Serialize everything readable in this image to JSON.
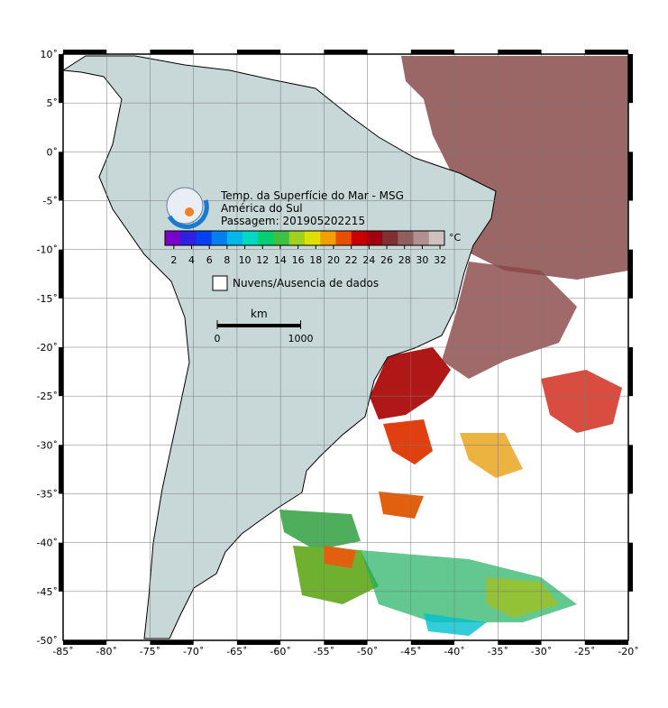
{
  "header": {
    "title": "Temp. da Superfície do Mar - MSG",
    "region": "América do Sul",
    "pass": "Passagem: 201905202215"
  },
  "colorbar": {
    "lim": [
      1,
      32.5
    ],
    "ticks": [
      2,
      4,
      6,
      8,
      10,
      12,
      14,
      16,
      18,
      20,
      22,
      24,
      26,
      28,
      30,
      32
    ],
    "unit": "°C",
    "colors": [
      "#7a00c8",
      "#3020e0",
      "#0040f0",
      "#0080f0",
      "#00b8e8",
      "#00d8c0",
      "#00d070",
      "#40c040",
      "#a0d020",
      "#e0e000",
      "#f0a000",
      "#e85000",
      "#c80000",
      "#a00010",
      "#803030",
      "#906060",
      "#b09090",
      "#d0c0c0"
    ]
  },
  "legend": {
    "label": "Nuvens/Ausencia de dados"
  },
  "scale": {
    "unit": "km",
    "ticks": [
      0,
      1000
    ]
  },
  "map": {
    "lonlim": [
      -85,
      -20
    ],
    "latlim": [
      -50,
      10
    ],
    "lonticks": [
      {
        "value": -85,
        "label": "-85˚"
      },
      {
        "value": -80,
        "label": "-80˚"
      },
      {
        "value": -75,
        "label": "-75˚"
      },
      {
        "value": -70,
        "label": "-70˚"
      },
      {
        "value": -65,
        "label": "-65˚"
      },
      {
        "value": -60,
        "label": "-60˚"
      },
      {
        "value": -55,
        "label": "-55˚"
      },
      {
        "value": -50,
        "label": "-50˚"
      },
      {
        "value": -45,
        "label": "-45˚"
      },
      {
        "value": -40,
        "label": "-40˚"
      },
      {
        "value": -35,
        "label": "-35˚"
      },
      {
        "value": -30,
        "label": "-30˚"
      },
      {
        "value": -25,
        "label": "-25˚"
      },
      {
        "value": -20,
        "label": "-20˚"
      }
    ],
    "latticks": [
      {
        "value": 10,
        "label": "10˚"
      },
      {
        "value": 5,
        "label": "5˚"
      },
      {
        "value": 0,
        "label": "0˚"
      },
      {
        "value": -5,
        "label": "-5˚"
      },
      {
        "value": -10,
        "label": "-10˚"
      },
      {
        "value": -15,
        "label": "-15˚"
      },
      {
        "value": -20,
        "label": "-20˚"
      },
      {
        "value": -25,
        "label": "-25˚"
      },
      {
        "value": -30,
        "label": "-30˚"
      },
      {
        "value": -35,
        "label": "-35˚"
      },
      {
        "value": -40,
        "label": "-40˚"
      },
      {
        "value": -45,
        "label": "-45˚"
      },
      {
        "value": -50,
        "label": "-50˚"
      }
    ]
  }
}
